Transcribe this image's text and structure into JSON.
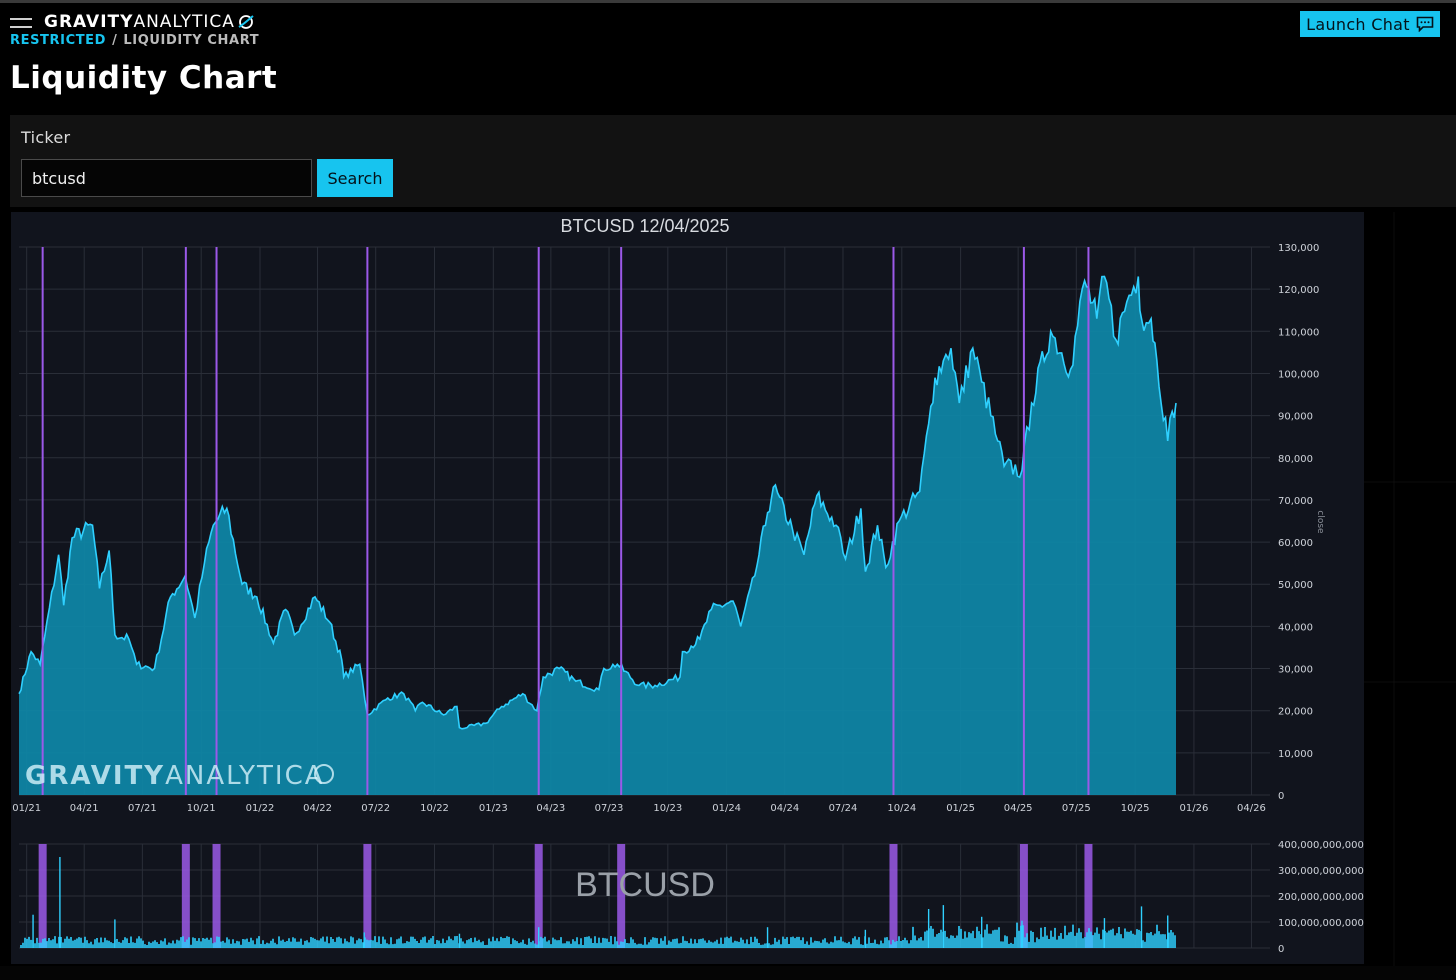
{
  "header": {
    "logo_bold": "GRAVITY",
    "logo_light": "ANALYTICA",
    "breadcrumb": {
      "link": "RESTRICTED",
      "separator": "/",
      "current": "LIQUIDITY CHART"
    },
    "page_title": "Liquidity Chart",
    "launch_chat_label": "Launch Chat"
  },
  "search": {
    "label": "Ticker",
    "value": "btcusd",
    "button_label": "Search"
  },
  "colors": {
    "accent": "#17c4ef",
    "area_fill": "#0e88a8",
    "price_line": "#2fd0ff",
    "marker": "#9b59e8",
    "chart_bg": "#11141d"
  },
  "icons": [
    "menu-icon",
    "logo-swirl-icon",
    "chat-icon"
  ],
  "chart_data": [
    {
      "type": "area",
      "title": "BTCUSD 12/04/2025",
      "ylabel": "close",
      "watermark_bold": "GRAVITY",
      "watermark_light": "ANALYTICA",
      "x_ticks": [
        "01/21",
        "04/21",
        "07/21",
        "10/21",
        "01/22",
        "04/22",
        "07/22",
        "10/22",
        "01/23",
        "04/23",
        "07/23",
        "10/23",
        "01/24",
        "04/24",
        "07/24",
        "10/24",
        "01/25",
        "04/25",
        "07/25",
        "10/25",
        "01/26",
        "04/26"
      ],
      "y_ticks": [
        "0",
        "10,000",
        "20,000",
        "30,000",
        "40,000",
        "50,000",
        "60,000",
        "70,000",
        "80,000",
        "90,000",
        "100,000",
        "110,000",
        "120,000",
        "130,000"
      ],
      "ylim": [
        0,
        130000
      ],
      "xlim": [
        "2020-12-20",
        "2026-04-30"
      ],
      "series": [
        {
          "x": [
            "2020-12-20",
            "2021-01-08",
            "2021-01-22",
            "2021-02-20",
            "2021-02-28",
            "2021-03-13",
            "2021-04-14",
            "2021-04-25",
            "2021-05-10",
            "2021-05-19",
            "2021-06-10",
            "2021-06-22",
            "2021-07-20",
            "2021-08-14",
            "2021-09-06",
            "2021-09-21",
            "2021-10-06",
            "2021-10-20",
            "2021-11-10",
            "2021-12-04",
            "2021-12-27",
            "2022-01-22",
            "2022-02-10",
            "2022-02-24",
            "2022-03-28",
            "2022-04-20",
            "2022-05-09",
            "2022-05-12",
            "2022-06-06",
            "2022-06-18",
            "2022-07-20",
            "2022-08-14",
            "2022-09-01",
            "2022-09-12",
            "2022-10-15",
            "2022-11-05",
            "2022-11-09",
            "2022-11-21",
            "2022-12-20",
            "2023-01-14",
            "2023-02-16",
            "2023-03-10",
            "2023-03-20",
            "2023-04-14",
            "2023-05-10",
            "2023-06-15",
            "2023-06-23",
            "2023-07-14",
            "2023-08-17",
            "2023-09-11",
            "2023-10-20",
            "2023-10-24",
            "2023-11-20",
            "2023-12-08",
            "2024-01-11",
            "2024-01-23",
            "2024-02-14",
            "2024-03-05",
            "2024-03-14",
            "2024-04-13",
            "2024-05-01",
            "2024-05-21",
            "2024-06-20",
            "2024-07-05",
            "2024-07-29",
            "2024-08-05",
            "2024-08-24",
            "2024-09-06",
            "2024-09-27",
            "2024-10-29",
            "2024-11-12",
            "2024-11-22",
            "2024-12-05",
            "2024-12-17",
            "2024-12-30",
            "2025-01-20",
            "2025-02-03",
            "2025-02-28",
            "2025-03-10",
            "2025-04-07",
            "2025-04-22",
            "2025-05-22",
            "2025-06-22",
            "2025-07-14",
            "2025-08-02",
            "2025-08-14",
            "2025-09-01",
            "2025-09-18",
            "2025-10-06",
            "2025-10-11",
            "2025-10-26",
            "2025-11-04",
            "2025-11-21",
            "2025-11-28",
            "2025-12-04"
          ],
          "y": [
            24000,
            34000,
            31000,
            57000,
            45000,
            61000,
            64000,
            49000,
            58000,
            38000,
            37000,
            31000,
            30000,
            47000,
            52000,
            42000,
            55000,
            64000,
            68000,
            50000,
            47000,
            36000,
            44000,
            38000,
            47000,
            41000,
            32000,
            28000,
            31000,
            19000,
            23000,
            24000,
            20000,
            22000,
            19000,
            21000,
            16000,
            16000,
            17000,
            21000,
            24000,
            20000,
            28000,
            30000,
            27000,
            25000,
            30000,
            31000,
            26000,
            26000,
            28000,
            34000,
            37000,
            44000,
            46000,
            40000,
            52000,
            67000,
            73000,
            63000,
            57000,
            71000,
            64000,
            56000,
            68000,
            53000,
            64000,
            54000,
            65000,
            72000,
            88000,
            99000,
            103000,
            106000,
            93000,
            106000,
            98000,
            84000,
            78000,
            77000,
            93000,
            110000,
            101000,
            122000,
            113000,
            123000,
            108000,
            117000,
            123000,
            113000,
            113000,
            103000,
            84000,
            91000,
            93000
          ]
        }
      ],
      "markers": [
        "2021-01-26",
        "2021-09-07",
        "2021-10-25",
        "2022-06-18",
        "2023-03-13",
        "2023-07-20",
        "2024-09-18",
        "2025-04-10",
        "2025-07-20"
      ]
    },
    {
      "type": "bar",
      "title": "BTCUSD",
      "y_ticks": [
        "0",
        "100,000,000,000",
        "200,000,000,000",
        "300,000,000,000",
        "400,000,000,000"
      ],
      "ylim": [
        0,
        400000000000
      ],
      "spikes": [
        {
          "x": "2021-01-11",
          "value": 128000000000
        },
        {
          "x": "2021-02-22",
          "value": 350000000000
        },
        {
          "x": "2021-05-19",
          "value": 110000000000
        },
        {
          "x": "2022-06-13",
          "value": 60000000000
        },
        {
          "x": "2022-11-09",
          "value": 55000000000
        },
        {
          "x": "2023-03-13",
          "value": 80000000000
        },
        {
          "x": "2024-03-05",
          "value": 80000000000
        },
        {
          "x": "2024-08-05",
          "value": 70000000000
        },
        {
          "x": "2024-11-12",
          "value": 150000000000
        },
        {
          "x": "2024-12-05",
          "value": 165000000000
        },
        {
          "x": "2025-02-03",
          "value": 120000000000
        },
        {
          "x": "2025-04-07",
          "value": 105000000000
        },
        {
          "x": "2025-08-14",
          "value": 115000000000
        },
        {
          "x": "2025-10-11",
          "value": 160000000000
        },
        {
          "x": "2025-11-21",
          "value": 125000000000
        }
      ]
    }
  ]
}
